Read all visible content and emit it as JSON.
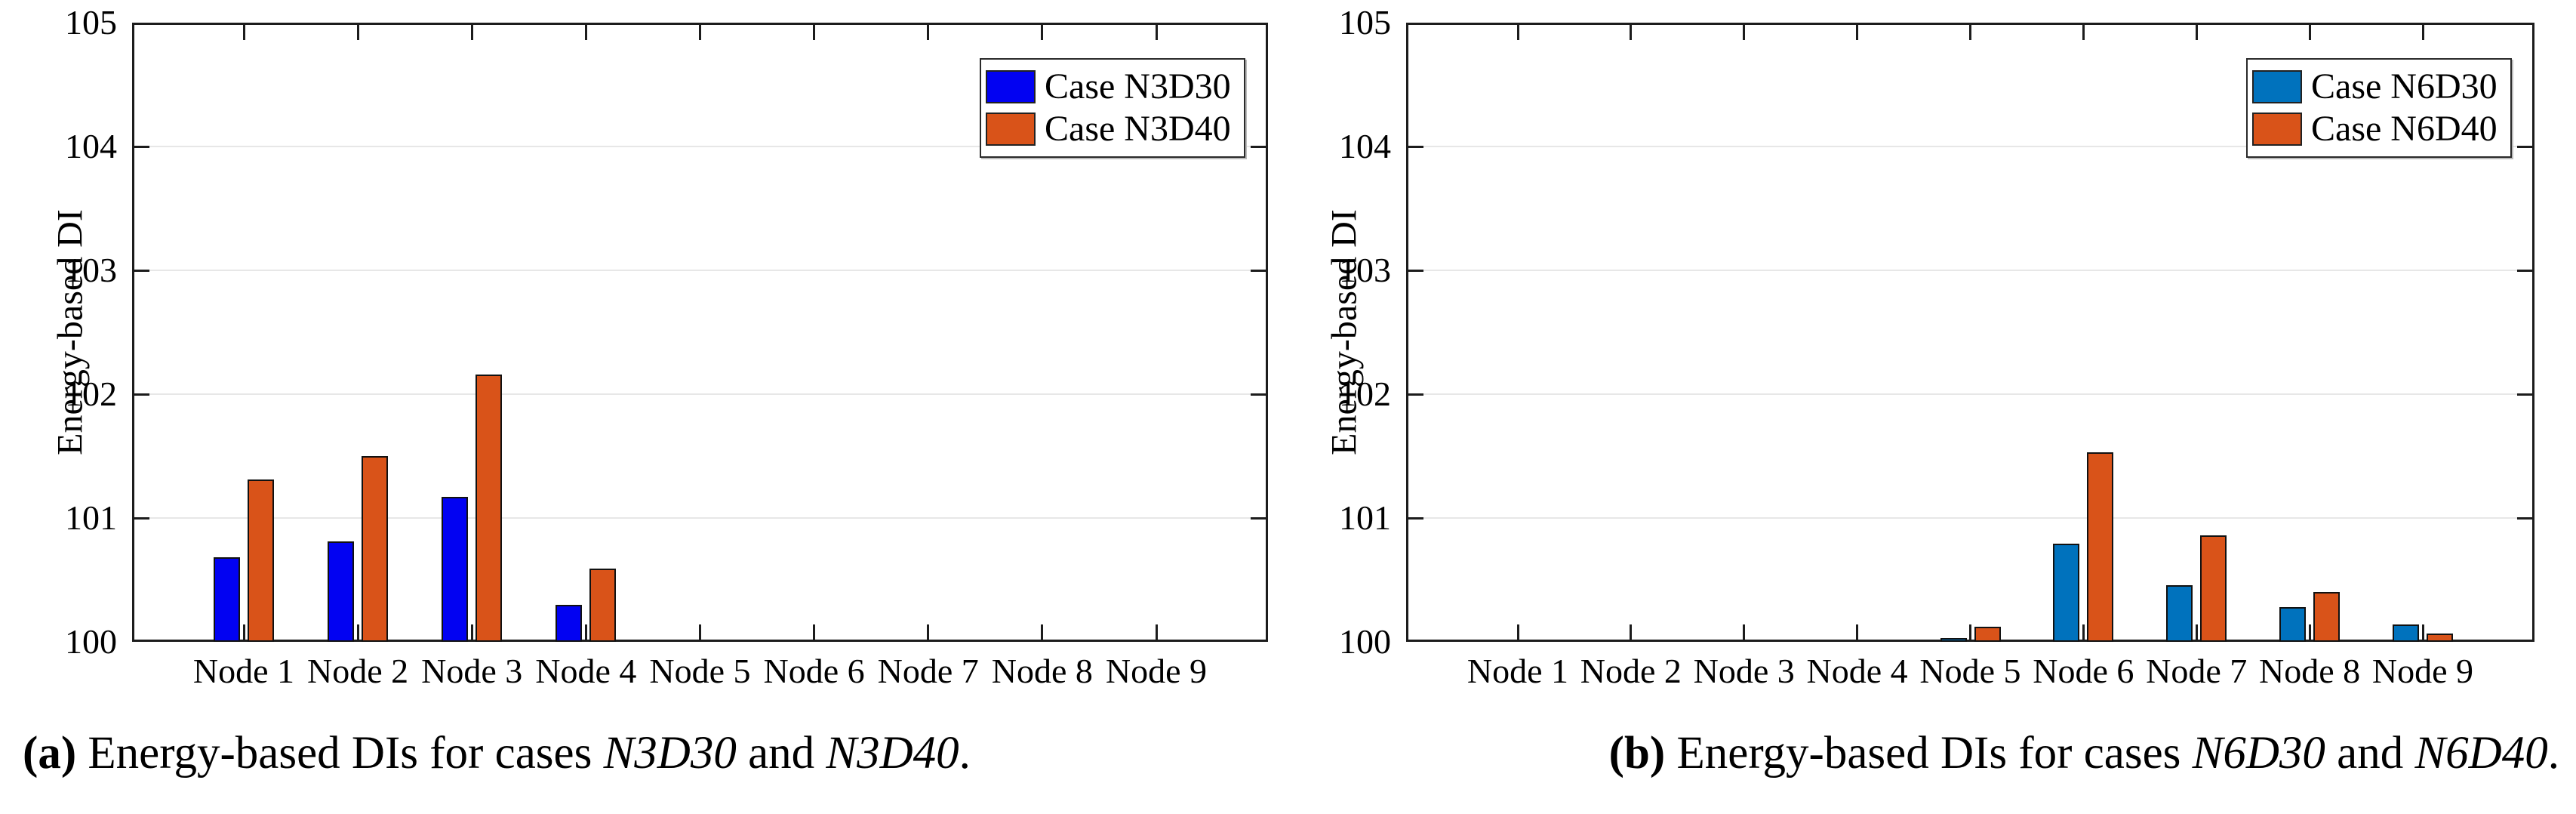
{
  "figure": {
    "background": "#ffffff",
    "axis_color": "#1c1c1c",
    "grid_color": "#e7e7e7"
  },
  "caption": {
    "a": {
      "label": "(a)",
      "pre": " Energy-based DIs for cases ",
      "case1": "N3D30",
      "mid": " and ",
      "case2": "N3D40",
      "end": "."
    },
    "b": {
      "label": "(b)",
      "pre": " Energy-based DIs for cases ",
      "case1": "N6D30",
      "mid": " and ",
      "case2": "N6D40",
      "end": "."
    }
  },
  "chart_data": [
    {
      "type": "bar",
      "panel": "a",
      "categories": [
        "Node 1",
        "Node 2",
        "Node 3",
        "Node 4",
        "Node 5",
        "Node 6",
        "Node 7",
        "Node 8",
        "Node 9"
      ],
      "series": [
        {
          "name": "Case N3D30",
          "color": "#0202f2",
          "values": [
            100.68,
            100.81,
            101.17,
            100.3,
            100,
            100,
            100,
            100,
            100
          ]
        },
        {
          "name": "Case N3D40",
          "color": "#d95319",
          "values": [
            101.31,
            101.5,
            102.16,
            100.59,
            100,
            100,
            100,
            100,
            100
          ]
        }
      ],
      "xlabel": "",
      "ylabel": "Energy-based DI",
      "ylim": [
        100,
        105
      ],
      "yticks": [
        100,
        101,
        102,
        103,
        104,
        105
      ],
      "grid": true,
      "legend_position": "top-right"
    },
    {
      "type": "bar",
      "panel": "b",
      "categories": [
        "Node 1",
        "Node 2",
        "Node 3",
        "Node 4",
        "Node 5",
        "Node 6",
        "Node 7",
        "Node 8",
        "Node 9"
      ],
      "series": [
        {
          "name": "Case N6D30",
          "color": "#0072bd",
          "values": [
            100,
            100,
            100,
            100,
            100.03,
            100.79,
            100.46,
            100.28,
            100.14
          ]
        },
        {
          "name": "Case N6D40",
          "color": "#d95319",
          "values": [
            100,
            100,
            100,
            100,
            100.12,
            101.53,
            100.86,
            100.4,
            100.07
          ]
        }
      ],
      "xlabel": "",
      "ylabel": "Energy-based DI",
      "ylim": [
        100,
        105
      ],
      "yticks": [
        100,
        101,
        102,
        103,
        104,
        105
      ],
      "grid": true,
      "legend_position": "top-right"
    }
  ]
}
